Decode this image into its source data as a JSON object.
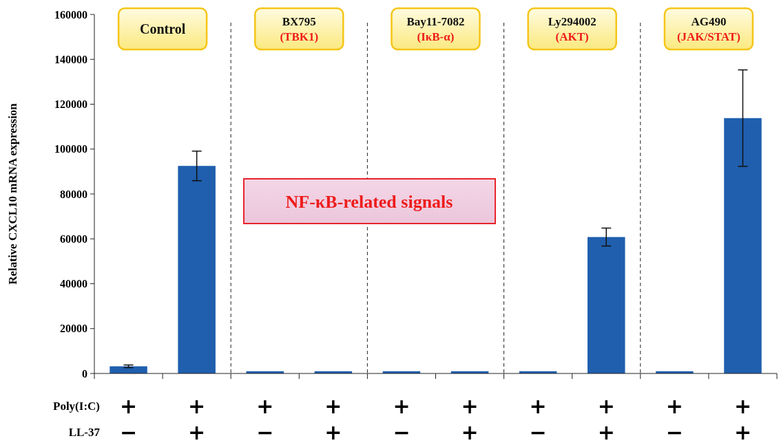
{
  "chart_data": {
    "type": "bar",
    "ylabel": "Relative CXCL10 mRNA expression",
    "xlabel": "Poly(I:C)\nLL-37",
    "categories": [
      "+\n−",
      "+\n+",
      "+\n−",
      "+\n+",
      "+\n−",
      "+\n+",
      "+\n−",
      "+\n+",
      "+\n−",
      "+\n+"
    ],
    "values": [
      3200,
      92500,
      1000,
      1000,
      1000,
      1000,
      1000,
      60800,
      1000,
      113800
    ],
    "errors": [
      600,
      6600,
      null,
      null,
      null,
      null,
      null,
      4000,
      null,
      21500
    ],
    "color": "#1f5fae",
    "ylim": [
      0,
      160000
    ],
    "yticks": [
      0,
      20000,
      40000,
      60000,
      80000,
      100000,
      120000,
      140000,
      160000
    ],
    "annotations": [
      "NF-κB-related signals",
      "Control",
      "BX795\n(TBK1)",
      "Bay11-7082\n(IκB-α)",
      "Ly294002\n(AKT)",
      "AG490\n(JAK/STAT)"
    ]
  }
}
